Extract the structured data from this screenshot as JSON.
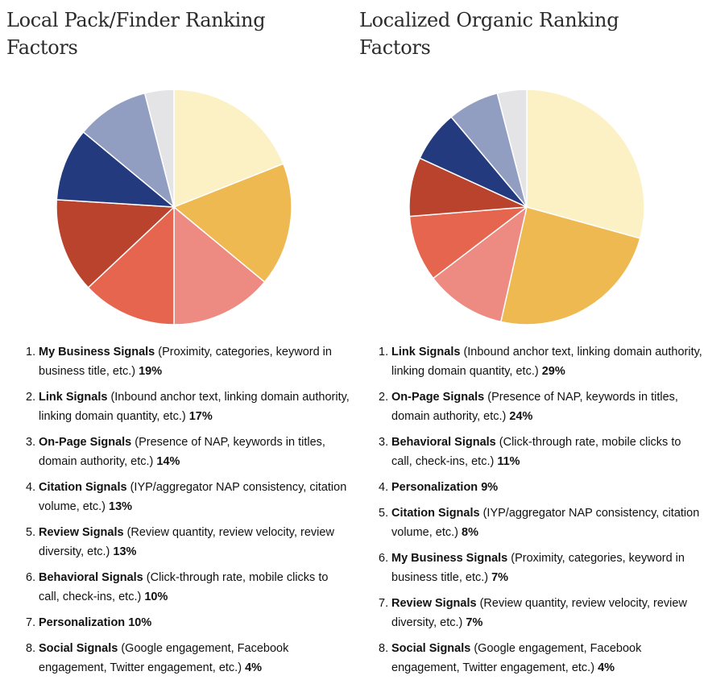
{
  "chart_data": [
    {
      "type": "pie",
      "title": "Local Pack/Finder Ranking Factors",
      "categories": [
        "My Business Signals",
        "Link Signals",
        "On-Page Signals",
        "Citation Signals",
        "Review Signals",
        "Behavioral Signals",
        "Personalization",
        "Social Signals"
      ],
      "values": [
        19,
        17,
        14,
        13,
        13,
        10,
        10,
        4
      ],
      "colors": [
        "#fbf1c5",
        "#efb951",
        "#ed8a81",
        "#e6654f",
        "#b9432d",
        "#243a7e",
        "#929ec1",
        "#e4e3e6"
      ],
      "items": [
        {
          "number": "1.",
          "name": "My Business Signals",
          "detail": " (Proximity, categories, keyword in business title, etc.) ",
          "percent": "19%"
        },
        {
          "number": "2.",
          "name": "Link Signals",
          "detail": " (Inbound anchor text, linking domain authority, linking domain quantity, etc.) ",
          "percent": "17%"
        },
        {
          "number": "3.",
          "name": "On-Page Signals",
          "detail": " (Presence of NAP, keywords in titles, domain authority, etc.) ",
          "percent": "14%"
        },
        {
          "number": "4.",
          "name": "Citation Signals",
          "detail": " (IYP/aggregator NAP consistency, citation volume, etc.) ",
          "percent": "13%"
        },
        {
          "number": "5.",
          "name": "Review Signals",
          "detail": " (Review quantity, review velocity, review diversity, etc.) ",
          "percent": "13%"
        },
        {
          "number": "6.",
          "name": "Behavioral Signals",
          "detail": " (Click-through rate, mobile clicks to call, check-ins, etc.) ",
          "percent": "10%"
        },
        {
          "number": "7.",
          "name": "Personalization",
          "detail": "  ",
          "percent": "10%"
        },
        {
          "number": "8.",
          "name": "Social Signals",
          "detail": " (Google engagement, Facebook engagement, Twitter engagement, etc.) ",
          "percent": "4%"
        }
      ]
    },
    {
      "type": "pie",
      "title": "Localized Organic Ranking Factors",
      "categories": [
        "Link Signals",
        "On-Page Signals",
        "Behavioral Signals",
        "Personalization",
        "Citation Signals",
        "My Business Signals",
        "Review Signals",
        "Social Signals"
      ],
      "values": [
        29,
        24,
        11,
        9,
        8,
        7,
        7,
        4
      ],
      "colors": [
        "#fbf1c5",
        "#efb951",
        "#ed8a81",
        "#e6654f",
        "#b9432d",
        "#243a7e",
        "#929ec1",
        "#e4e3e6"
      ],
      "items": [
        {
          "number": "1.",
          "name": "Link Signals",
          "detail": " (Inbound anchor text, linking domain authority, linking domain quantity, etc.) ",
          "percent": "29%"
        },
        {
          "number": "2.",
          "name": "On-Page Signals",
          "detail": " (Presence of NAP, keywords in titles, domain authority, etc.) ",
          "percent": "24%"
        },
        {
          "number": "3.",
          "name": "Behavioral Signals",
          "detail": " (Click-through rate, mobile clicks to call, check-ins, etc.) ",
          "percent": "11%"
        },
        {
          "number": "4.",
          "name": "Personalization",
          "detail": "  ",
          "percent": "9%"
        },
        {
          "number": "5.",
          "name": "Citation Signals",
          "detail": " (IYP/aggregator NAP consistency, citation volume, etc.) ",
          "percent": "8%"
        },
        {
          "number": "6.",
          "name": "My Business Signals",
          "detail": " (Proximity, categories, keyword in business title, etc.) ",
          "percent": "7%"
        },
        {
          "number": "7.",
          "name": "Review Signals",
          "detail": " (Review quantity, review velocity, review diversity, etc.) ",
          "percent": "7%"
        },
        {
          "number": "8.",
          "name": "Social Signals",
          "detail": " (Google engagement, Facebook engagement, Twitter engagement, etc.) ",
          "percent": "4%"
        }
      ]
    }
  ]
}
